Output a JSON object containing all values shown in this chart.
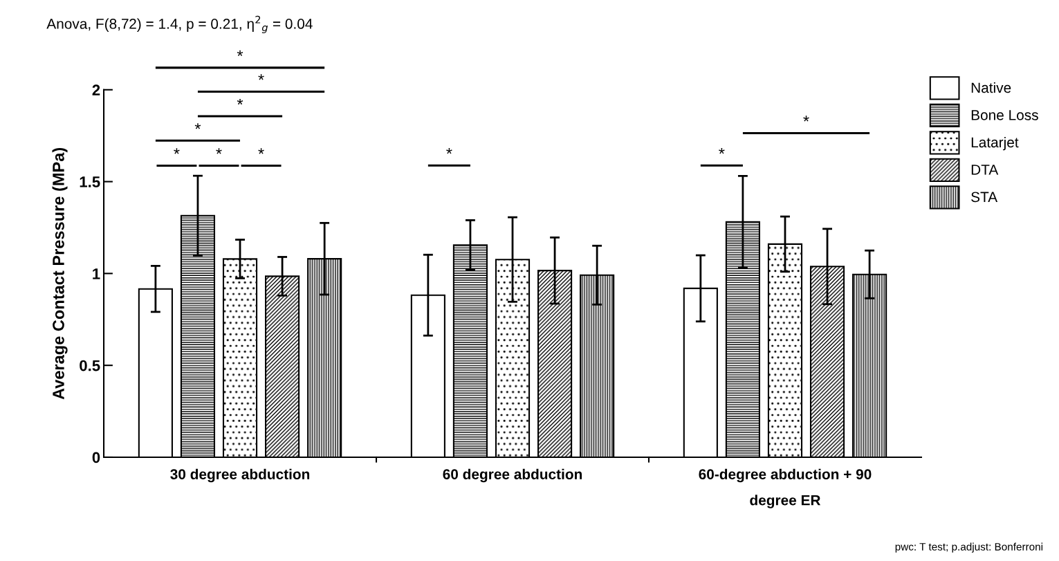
{
  "chart_data": {
    "type": "bar",
    "title": "Anova, F(8,72) = 1.4, p = 0.21, η$^{2}$$_{g}$ = 0.04",
    "ylabel": "Average Contact Pressure (MPa)",
    "categories": [
      "30 degree abduction",
      "60 degree abduction",
      "60-degree abduction + 90\ndegree ER"
    ],
    "series": [
      {
        "name": "Native",
        "color": "#ffffff",
        "values": [
          0.916,
          0.882,
          0.919
        ],
        "errors": [
          0.125,
          0.22,
          0.18
        ]
      },
      {
        "name": "Bone Loss",
        "color": "#000000",
        "values": [
          1.315,
          1.155,
          1.281
        ],
        "errors": [
          0.217,
          0.135,
          0.25
        ]
      },
      {
        "name": "Latarjet",
        "color": "#000000",
        "values": [
          1.079,
          1.076,
          1.16
        ],
        "errors": [
          0.105,
          0.23,
          0.15
        ]
      },
      {
        "name": "DTA",
        "color": "#000000",
        "values": [
          0.985,
          1.016,
          1.038
        ],
        "errors": [
          0.105,
          0.18,
          0.205
        ]
      },
      {
        "name": "STA",
        "color": "#000000",
        "values": [
          1.08,
          0.991,
          0.995
        ],
        "errors": [
          0.195,
          0.16,
          0.13
        ]
      }
    ],
    "ylim": [
      0,
      2
    ],
    "yticks": [
      0,
      0.5,
      1,
      1.5,
      2
    ],
    "grid": false,
    "legend": "top right",
    "annotations": [
      "*",
      "*",
      "*",
      "*",
      "*",
      "*",
      "*",
      "*",
      "*",
      "*",
      "pwc: T test; p.adjust: Bonferroni"
    ]
  }
}
